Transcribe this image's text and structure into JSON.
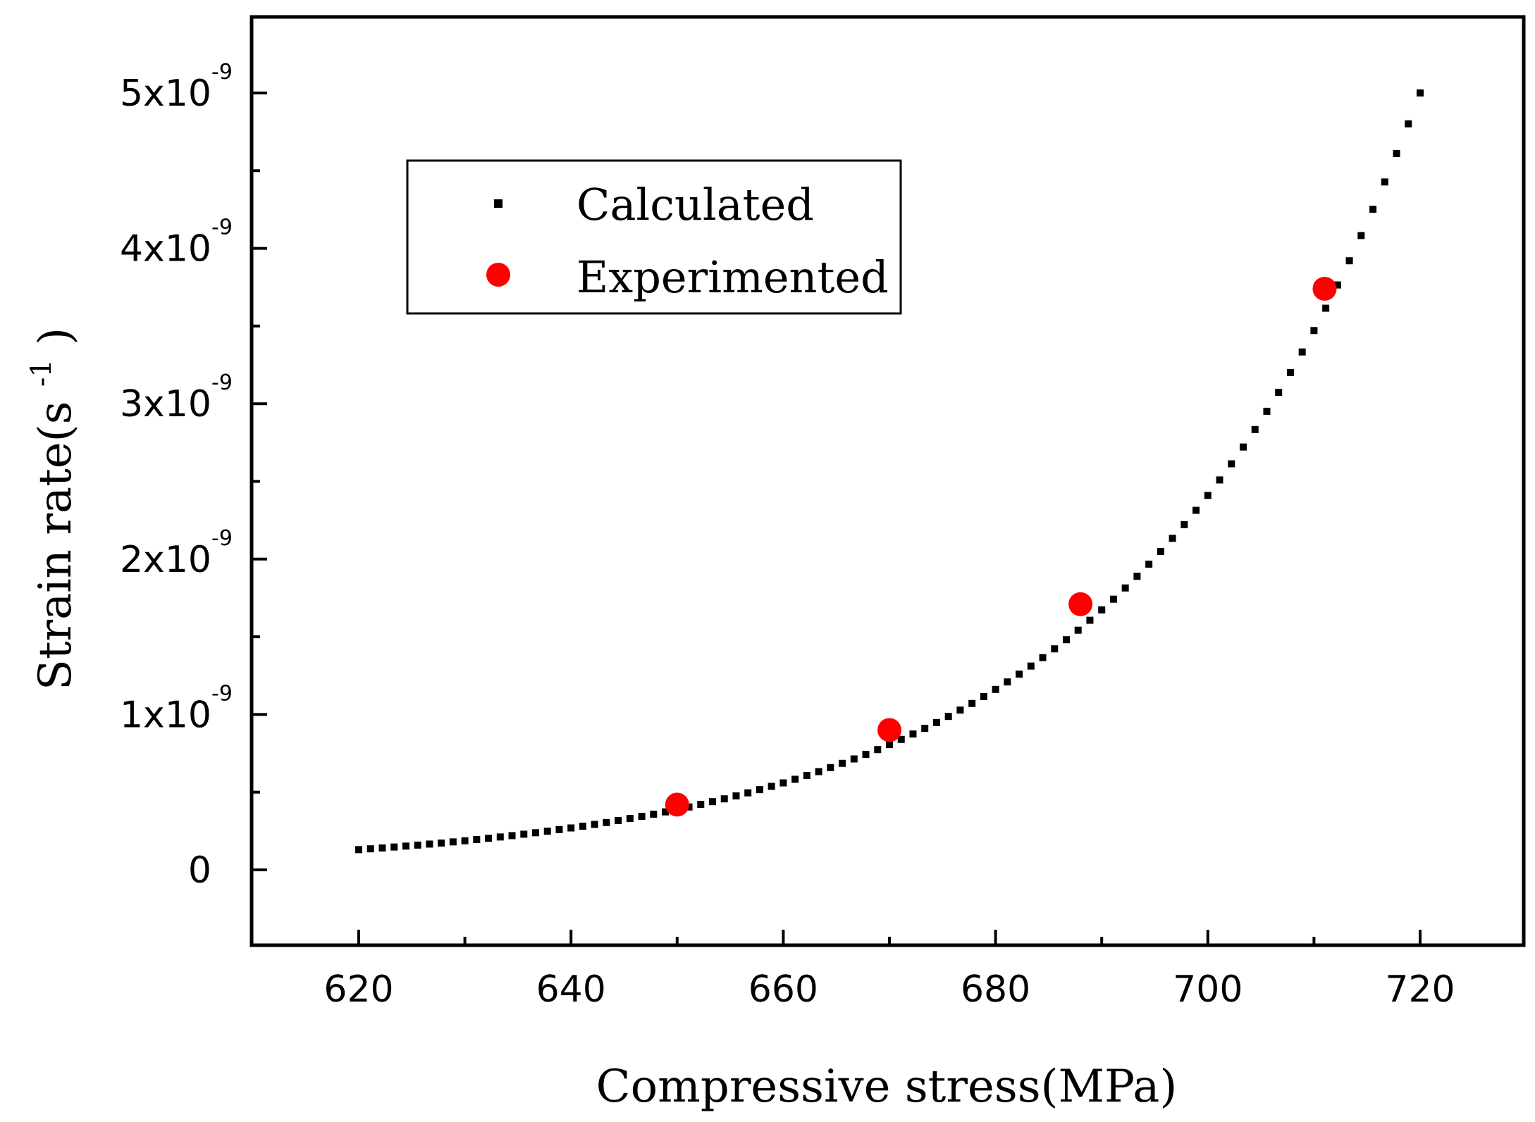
{
  "chart_data": {
    "type": "scatter",
    "xlabel": "Compressive stress(MPa)",
    "ylabel_main": "Strain rate(s",
    "ylabel_sup": "-1",
    "ylabel_close": ")",
    "xlim": [
      610,
      730
    ],
    "ylim": [
      -5e-10,
      5.5e-09
    ],
    "x_ticks": [
      620,
      640,
      660,
      680,
      700,
      720
    ],
    "x_tick_labels": [
      "620",
      "640",
      "660",
      "680",
      "700",
      "720"
    ],
    "y_ticks": [
      {
        "value": 0,
        "base": "0",
        "sup": ""
      },
      {
        "value": 1e-09,
        "base": "1x10",
        "sup": "-9"
      },
      {
        "value": 2e-09,
        "base": "2x10",
        "sup": "-9"
      },
      {
        "value": 3e-09,
        "base": "3x10",
        "sup": "-9"
      },
      {
        "value": 4e-09,
        "base": "4x10",
        "sup": "-9"
      },
      {
        "value": 5e-09,
        "base": "5x10",
        "sup": "-9"
      }
    ],
    "series": [
      {
        "name": "Calculated",
        "marker": "square",
        "color": "#000000",
        "x_start": 620,
        "x_end": 720,
        "y_at_x_start": 1.3e-10,
        "y_at_x_end": 5e-09
      },
      {
        "name": "Experimented",
        "marker": "circle",
        "color": "#ff0000",
        "x": [
          650,
          670,
          688,
          711
        ],
        "y": [
          4.2e-10,
          9e-10,
          1.71e-09,
          3.74e-09
        ]
      }
    ],
    "legend": {
      "placement": "top-left"
    }
  }
}
